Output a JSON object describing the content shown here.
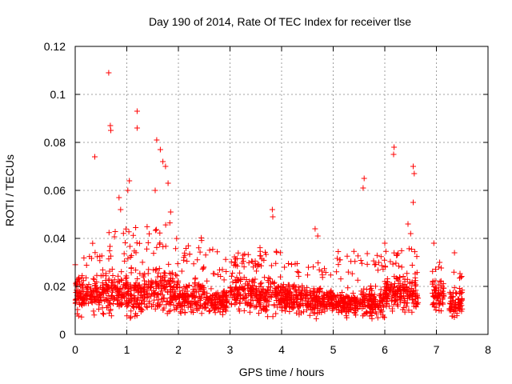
{
  "chart_data": {
    "type": "scatter",
    "title": "Day 190 of 2014, Rate Of TEC Index for receiver tlse",
    "xlabel": "GPS time / hours",
    "ylabel": "ROTI / TECUs",
    "xlim": [
      0,
      8
    ],
    "ylim": [
      0,
      0.12
    ],
    "xticks": [
      "0",
      "1",
      "2",
      "3",
      "4",
      "5",
      "6",
      "7",
      "8"
    ],
    "yticks": [
      "0",
      "0.02",
      "0.04",
      "0.06",
      "0.08",
      "0.1",
      "0.12"
    ],
    "grid": true,
    "marker": "+",
    "color": "#ff0000",
    "notable_points": [
      {
        "x": 0.65,
        "y": 0.109
      },
      {
        "x": 0.68,
        "y": 0.087
      },
      {
        "x": 0.69,
        "y": 0.085
      },
      {
        "x": 0.38,
        "y": 0.074
      },
      {
        "x": 1.2,
        "y": 0.093
      },
      {
        "x": 1.2,
        "y": 0.086
      },
      {
        "x": 1.58,
        "y": 0.081
      },
      {
        "x": 1.65,
        "y": 0.077
      },
      {
        "x": 1.7,
        "y": 0.072
      },
      {
        "x": 1.75,
        "y": 0.07
      },
      {
        "x": 1.8,
        "y": 0.063
      },
      {
        "x": 1.05,
        "y": 0.064
      },
      {
        "x": 1.02,
        "y": 0.06
      },
      {
        "x": 0.85,
        "y": 0.057
      },
      {
        "x": 0.88,
        "y": 0.052
      },
      {
        "x": 1.85,
        "y": 0.051
      },
      {
        "x": 1.55,
        "y": 0.06
      },
      {
        "x": 3.82,
        "y": 0.052
      },
      {
        "x": 3.83,
        "y": 0.049
      },
      {
        "x": 4.65,
        "y": 0.044
      },
      {
        "x": 4.7,
        "y": 0.041
      },
      {
        "x": 5.6,
        "y": 0.065
      },
      {
        "x": 5.58,
        "y": 0.061
      },
      {
        "x": 6.18,
        "y": 0.078
      },
      {
        "x": 6.17,
        "y": 0.075
      },
      {
        "x": 6.55,
        "y": 0.07
      },
      {
        "x": 6.57,
        "y": 0.067
      },
      {
        "x": 6.55,
        "y": 0.055
      },
      {
        "x": 6.45,
        "y": 0.046
      },
      {
        "x": 6.5,
        "y": 0.042
      },
      {
        "x": 6.0,
        "y": 0.038
      },
      {
        "x": 6.95,
        "y": 0.038
      },
      {
        "x": 7.35,
        "y": 0.034
      }
    ],
    "series": [
      {
        "name": "ROTI",
        "description": "dense band of points",
        "segments": [
          {
            "x_range": [
              0.0,
              0.5
            ],
            "base": [
              0.006,
              0.028
            ],
            "spike_max": 0.038
          },
          {
            "x_range": [
              0.5,
              1.0
            ],
            "base": [
              0.006,
              0.03
            ],
            "spike_max": 0.044
          },
          {
            "x_range": [
              1.0,
              1.5
            ],
            "base": [
              0.004,
              0.03
            ],
            "spike_max": 0.046
          },
          {
            "x_range": [
              1.5,
              2.0
            ],
            "base": [
              0.005,
              0.032
            ],
            "spike_max": 0.05
          },
          {
            "x_range": [
              2.0,
              2.5
            ],
            "base": [
              0.005,
              0.026
            ],
            "spike_max": 0.042
          },
          {
            "x_range": [
              2.5,
              2.95
            ],
            "base": [
              0.005,
              0.022
            ],
            "spike_max": 0.036
          },
          {
            "x_range": [
              3.0,
              3.5
            ],
            "base": [
              0.007,
              0.028
            ],
            "spike_max": 0.034
          },
          {
            "x_range": [
              3.5,
              4.0
            ],
            "base": [
              0.006,
              0.026
            ],
            "spike_max": 0.038
          },
          {
            "x_range": [
              4.0,
              4.5
            ],
            "base": [
              0.006,
              0.024
            ],
            "spike_max": 0.03
          },
          {
            "x_range": [
              4.5,
              5.0
            ],
            "base": [
              0.006,
              0.022
            ],
            "spike_max": 0.03
          },
          {
            "x_range": [
              5.0,
              5.5
            ],
            "base": [
              0.006,
              0.02
            ],
            "spike_max": 0.035
          },
          {
            "x_range": [
              5.5,
              6.0
            ],
            "base": [
              0.005,
              0.022
            ],
            "spike_max": 0.034
          },
          {
            "x_range": [
              6.0,
              6.65
            ],
            "base": [
              0.006,
              0.028
            ],
            "spike_max": 0.036
          },
          {
            "x_range": [
              6.92,
              7.15
            ],
            "base": [
              0.007,
              0.025
            ],
            "spike_max": 0.03
          },
          {
            "x_range": [
              7.25,
              7.5
            ],
            "base": [
              0.005,
              0.022
            ],
            "spike_max": 0.026
          }
        ]
      }
    ]
  }
}
